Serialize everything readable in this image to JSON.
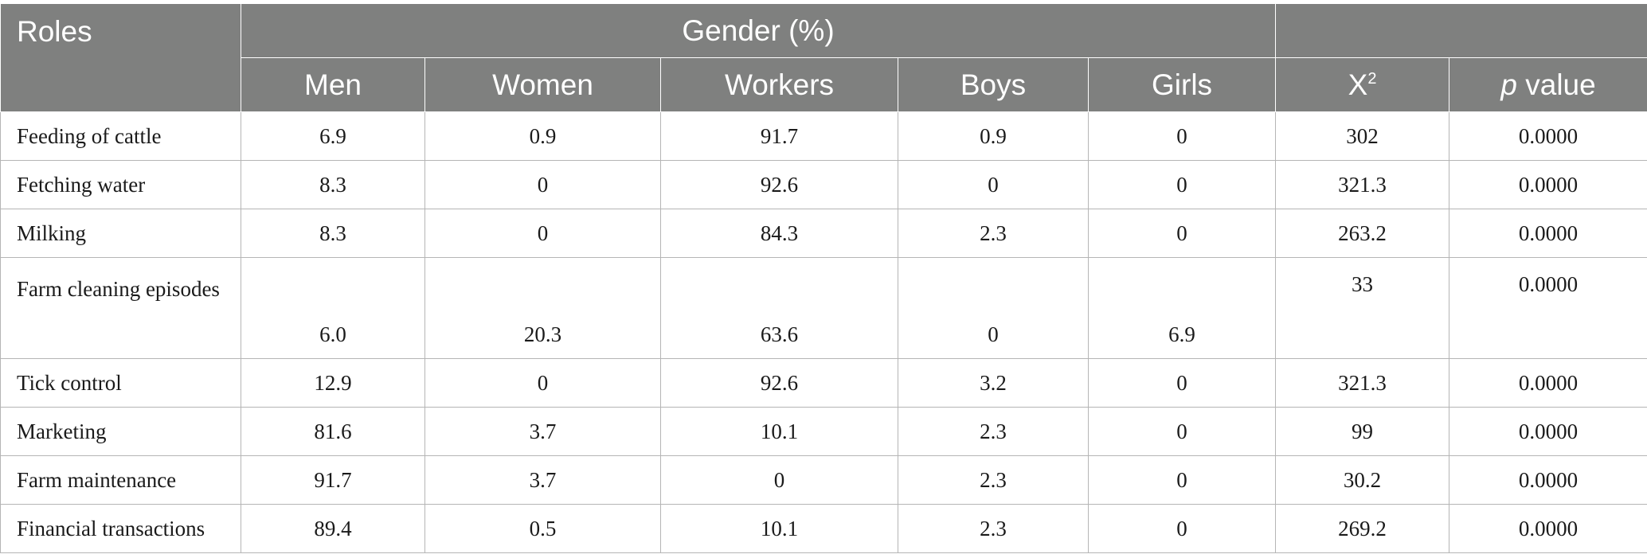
{
  "header": {
    "roles": "Roles",
    "group": "Gender (%)",
    "columns": [
      "Men",
      "Women",
      "Workers",
      "Boys",
      "Girls"
    ],
    "chi_base": "X",
    "chi_sup": "2",
    "p_italic": "p",
    "p_rest": " value"
  },
  "rows": [
    {
      "role": "Feeding of cattle",
      "values": [
        "6.9",
        "0.9",
        "91.7",
        "0.9",
        "0",
        "302",
        "0.0000"
      ]
    },
    {
      "role": "Fetching water",
      "values": [
        "8.3",
        "0",
        "92.6",
        "0",
        "0",
        "321.3",
        "0.0000"
      ]
    },
    {
      "role": "Milking",
      "values": [
        "8.3",
        "0",
        "84.3",
        "2.3",
        "0",
        "263.2",
        "0.0000"
      ]
    },
    {
      "role": "Farm cleaning episodes",
      "values": [
        "6.0",
        "20.3",
        "63.6",
        "0",
        "6.9",
        "33",
        "0.0000"
      ]
    },
    {
      "role": "Tick control",
      "values": [
        "12.9",
        "0",
        "92.6",
        "3.2",
        "0",
        "321.3",
        "0.0000"
      ]
    },
    {
      "role": "Marketing",
      "values": [
        "81.6",
        "3.7",
        "10.1",
        "2.3",
        "0",
        "99",
        "0.0000"
      ]
    },
    {
      "role": "Farm maintenance",
      "values": [
        "91.7",
        "3.7",
        "0",
        "2.3",
        "0",
        "30.2",
        "0.0000"
      ]
    },
    {
      "role": "Financial transactions",
      "values": [
        "89.4",
        "0.5",
        "10.1",
        "2.3",
        "0",
        "269.2",
        "0.0000"
      ]
    }
  ]
}
